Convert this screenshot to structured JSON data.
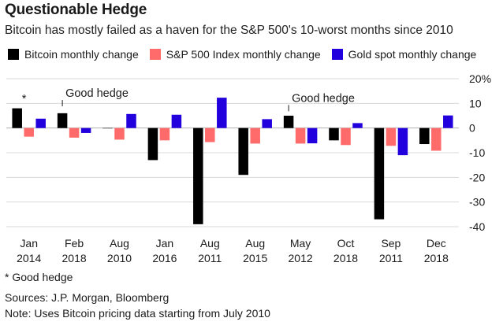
{
  "chart_data": {
    "type": "bar",
    "title": "Questionable Hedge",
    "subtitle": "Bitcoin has mostly failed as a haven for the S&P 500's 10-worst months since 2010",
    "categories": [
      [
        "Jan",
        "2014"
      ],
      [
        "Feb",
        "2018"
      ],
      [
        "Aug",
        "2010"
      ],
      [
        "Jan",
        "2016"
      ],
      [
        "Aug",
        "2011"
      ],
      [
        "Aug",
        "2015"
      ],
      [
        "May",
        "2012"
      ],
      [
        "Oct",
        "2018"
      ],
      [
        "Sep",
        "2011"
      ],
      [
        "Dec",
        "2018"
      ]
    ],
    "series": [
      {
        "name": "Bitcoin monthly change",
        "color": "#000000",
        "values": [
          8,
          6,
          0,
          -13,
          -39,
          -19,
          5,
          -5,
          -37,
          -6.5
        ]
      },
      {
        "name": "S&P 500 Index monthly change",
        "color": "#ff6b6b",
        "values": [
          -3.5,
          -3.9,
          -4.7,
          -5,
          -5.7,
          -6.3,
          -6.3,
          -6.9,
          -7.2,
          -9.2
        ]
      },
      {
        "name": "Gold spot monthly change",
        "color": "#2200dd",
        "values": [
          3.8,
          -2,
          5.7,
          5.4,
          12.3,
          3.6,
          -6.2,
          2,
          -11,
          5.1
        ]
      }
    ],
    "ylim": [
      -40,
      20
    ],
    "yticks": [
      20,
      10,
      0,
      -10,
      -20,
      -30,
      -40
    ],
    "ytick_labels": [
      "20%",
      "10",
      "0",
      "-10",
      "-20",
      "-30",
      "-40"
    ],
    "grid": true,
    "legend_position": "top",
    "annotations": [
      {
        "text": "*",
        "category_index": 0,
        "value": 12
      },
      {
        "text": "Good hedge",
        "category_index": 1,
        "value": 12
      },
      {
        "text": "Good hedge",
        "category_index": 6,
        "value": 10
      }
    ]
  },
  "footnotes": {
    "asterisk": "* Good hedge",
    "sources": "Sources: J.P. Morgan, Bloomberg",
    "note": "Note: Uses Bitcoin pricing data starting from July 2010"
  }
}
